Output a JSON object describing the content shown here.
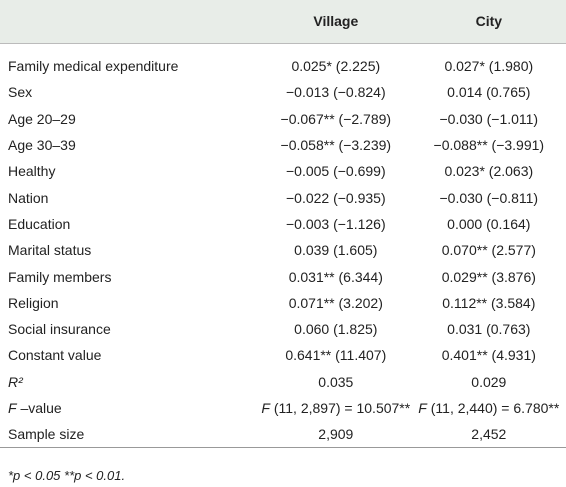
{
  "table": {
    "header": [
      "",
      "Village",
      "City"
    ],
    "rows": [
      [
        "Family medical expenditure",
        "0.025* (2.225)",
        "0.027* (1.980)"
      ],
      [
        "Sex",
        "−0.013 (−0.824)",
        "0.014 (0.765)"
      ],
      [
        "Age 20–29",
        "−0.067** (−2.789)",
        "−0.030 (−1.011)"
      ],
      [
        "Age 30–39",
        "−0.058** (−3.239)",
        "−0.088** (−3.991)"
      ],
      [
        "Healthy",
        "−0.005 (−0.699)",
        "0.023* (2.063)"
      ],
      [
        "Nation",
        "−0.022 (−0.935)",
        "−0.030 (−0.811)"
      ],
      [
        "Education",
        "−0.003 (−1.126)",
        "0.000 (0.164)"
      ],
      [
        "Marital status",
        "0.039 (1.605)",
        "0.070** (2.577)"
      ],
      [
        "Family members",
        "0.031** (6.344)",
        "0.029** (3.876)"
      ],
      [
        "Religion",
        "0.071** (3.202)",
        "0.112** (3.584)"
      ],
      [
        "Social insurance",
        "0.060 (1.825)",
        "0.031 (0.763)"
      ],
      [
        "Constant value",
        "0.641** (11.407)",
        "0.401** (4.931)"
      ],
      [
        [
          {
            "text": "R²",
            "italic": true
          }
        ],
        "0.035",
        "0.029"
      ],
      [
        [
          {
            "text": "F",
            "italic": true
          },
          {
            "text": " –value"
          }
        ],
        [
          {
            "text": "F",
            "italic": true
          },
          {
            "text": " (11, 2,897) = 10.507**"
          }
        ],
        [
          {
            "text": "F",
            "italic": true
          },
          {
            "text": " (11, 2,440) = 6.780**"
          }
        ]
      ],
      [
        "Sample size",
        "2,909",
        "2,452"
      ]
    ],
    "footnote": "*p < 0.05 **p < 0.01."
  }
}
